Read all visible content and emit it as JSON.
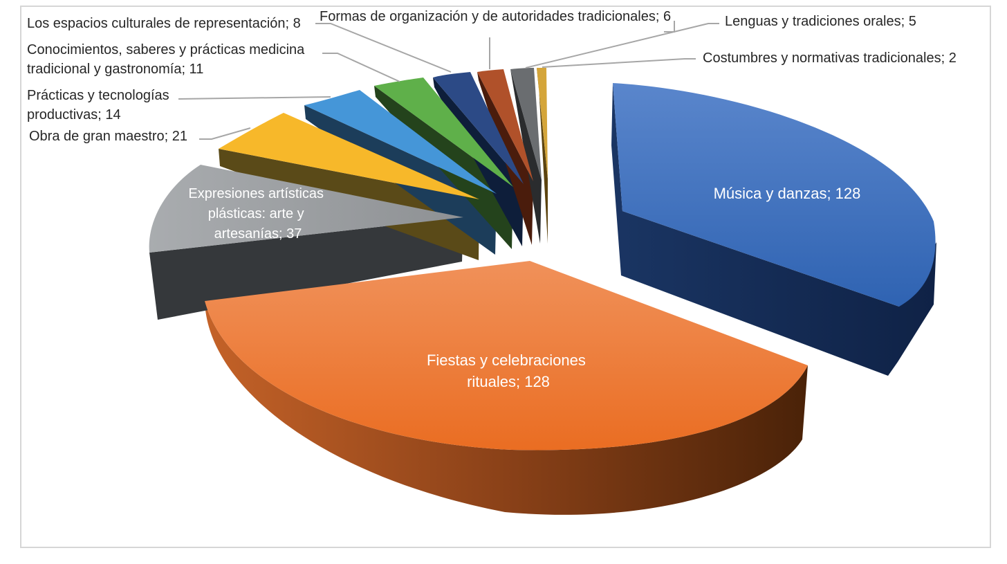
{
  "chart_data": {
    "type": "pie",
    "style": "3d-exploded",
    "title": "",
    "slices": [
      {
        "name": "Música y danzas",
        "value": 128,
        "label": "Música y danzas; 128",
        "color": "#3a6cba"
      },
      {
        "name": "Fiestas y celebraciones rituales",
        "value": 128,
        "label": [
          "Fiestas y celebraciones",
          "rituales; 128"
        ],
        "color": "#ef7b38"
      },
      {
        "name": "Expresiones artísticas plásticas: arte y artesanías",
        "value": 37,
        "label": [
          "Expresiones artísticas",
          "plásticas: arte y",
          "artesanías; 37"
        ],
        "color": "#9ea1a4"
      },
      {
        "name": "Obra de gran maestro",
        "value": 21,
        "label": [
          "Obra de gran maestro; 21"
        ],
        "color": "#f7b82a"
      },
      {
        "name": "Prácticas y tecnologías productivas",
        "value": 14,
        "label": [
          "Prácticas y tecnologías",
          "productivas; 14"
        ],
        "color": "#4596d8"
      },
      {
        "name": "Conocimientos, saberes y prácticas medicina tradicional y gastronomía",
        "value": 11,
        "label": [
          "Conocimientos, saberes y prácticas medicina",
          "tradicional y gastronomía; 11"
        ],
        "color": "#5fb04a"
      },
      {
        "name": "Los espacios culturales de representación",
        "value": 8,
        "label": [
          "Los espacios culturales de representación; 8"
        ],
        "color": "#2c4a86"
      },
      {
        "name": "Formas de organización y de autoridades tradicionales",
        "value": 6,
        "label": [
          "Formas de organización y de autoridades tradicionales; 6"
        ],
        "color": "#b0512a"
      },
      {
        "name": "Lenguas y tradiciones orales",
        "value": 5,
        "label": [
          "Lenguas y tradiciones orales; 5"
        ],
        "color": "#6a6d70"
      },
      {
        "name": "Costumbres y normativas tradicionales",
        "value": 2,
        "label": [
          "Costumbres y normativas tradicionales; 2"
        ],
        "color": "#b68a24"
      }
    ]
  }
}
